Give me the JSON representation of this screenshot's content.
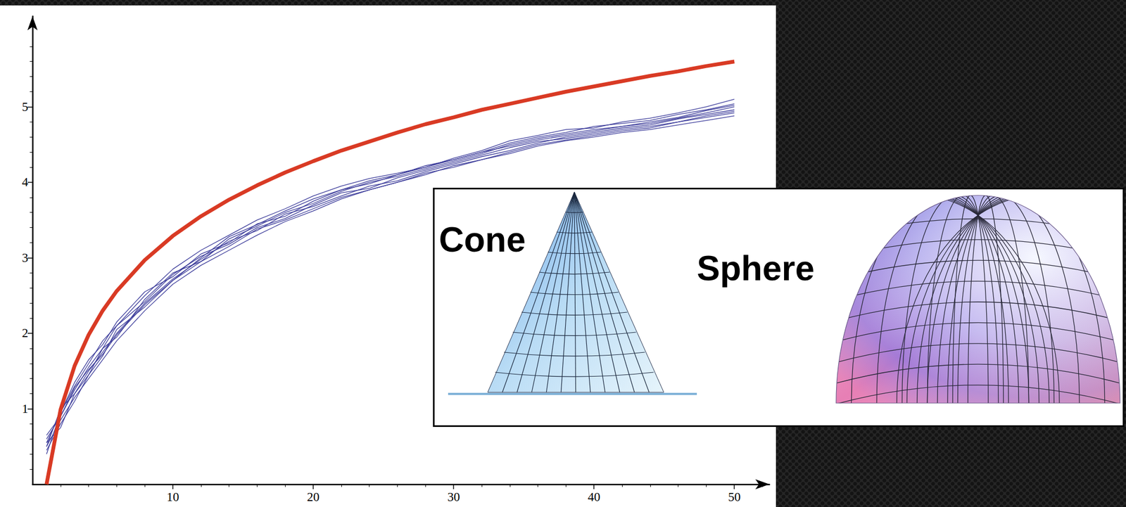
{
  "chart_data": {
    "type": "line",
    "x": [
      1,
      2,
      3,
      4,
      5,
      6,
      8,
      10,
      12,
      14,
      16,
      18,
      20,
      22,
      24,
      26,
      28,
      30,
      32,
      34,
      36,
      38,
      40,
      42,
      44,
      46,
      48,
      50
    ],
    "series": [
      {
        "color": "#3b3b9a",
        "line_style": "solid",
        "values": [
          0.55,
          0.95,
          1.3,
          1.6,
          1.9,
          2.1,
          2.5,
          2.85,
          3.1,
          3.3,
          3.5,
          3.65,
          3.82,
          3.95,
          4.05,
          4.12,
          4.2,
          4.32,
          4.42,
          4.55,
          4.62,
          4.7,
          4.72,
          4.8,
          4.85,
          4.92,
          5.0,
          5.1
        ]
      },
      {
        "color": "#3b3b9a",
        "line_style": "solid",
        "values": [
          0.45,
          0.8,
          1.1,
          1.45,
          1.7,
          2.05,
          2.35,
          2.7,
          2.95,
          3.15,
          3.38,
          3.5,
          3.65,
          3.8,
          3.9,
          4.0,
          4.1,
          4.22,
          4.3,
          4.4,
          4.5,
          4.56,
          4.62,
          4.68,
          4.72,
          4.8,
          4.86,
          4.92
        ]
      },
      {
        "color": "#3b3b9a",
        "line_style": "solid",
        "values": [
          0.6,
          0.9,
          1.25,
          1.55,
          1.8,
          1.95,
          2.45,
          2.8,
          2.95,
          3.25,
          3.42,
          3.6,
          3.72,
          3.88,
          4.0,
          4.08,
          4.18,
          4.28,
          4.38,
          4.5,
          4.58,
          4.64,
          4.7,
          4.74,
          4.8,
          4.86,
          4.95,
          5.02
        ]
      },
      {
        "color": "#3b3b9a",
        "line_style": "solid",
        "values": [
          0.5,
          0.85,
          1.15,
          1.4,
          1.65,
          1.9,
          2.3,
          2.65,
          2.9,
          3.1,
          3.3,
          3.48,
          3.62,
          3.78,
          3.9,
          4.0,
          4.12,
          4.2,
          4.3,
          4.38,
          4.48,
          4.55,
          4.6,
          4.66,
          4.7,
          4.76,
          4.82,
          4.88
        ]
      },
      {
        "color": "#3b3b9a",
        "line_style": "solid",
        "values": [
          0.4,
          0.95,
          1.35,
          1.65,
          1.85,
          2.15,
          2.55,
          2.75,
          3.05,
          3.2,
          3.45,
          3.55,
          3.75,
          3.9,
          3.98,
          4.1,
          4.2,
          4.3,
          4.4,
          4.48,
          4.56,
          4.62,
          4.68,
          4.74,
          4.78,
          4.85,
          4.92,
          5.0
        ]
      },
      {
        "color": "#3b3b9a",
        "line_style": "solid",
        "values": [
          0.55,
          0.75,
          1.2,
          1.5,
          1.75,
          2.0,
          2.4,
          2.72,
          2.98,
          3.22,
          3.36,
          3.58,
          3.68,
          3.82,
          3.95,
          4.02,
          4.14,
          4.24,
          4.34,
          4.42,
          4.52,
          4.6,
          4.66,
          4.72,
          4.76,
          4.84,
          4.9,
          4.96
        ]
      },
      {
        "color": "#3b3b9a",
        "line_style": "solid",
        "values": [
          0.5,
          1.0,
          1.2,
          1.45,
          1.8,
          2.1,
          2.42,
          2.78,
          3.02,
          3.18,
          3.4,
          3.52,
          3.7,
          3.86,
          3.92,
          4.06,
          4.16,
          4.26,
          4.36,
          4.46,
          4.54,
          4.58,
          4.64,
          4.7,
          4.74,
          4.8,
          4.88,
          4.94
        ]
      },
      {
        "color": "#3b3b9a",
        "line_style": "solid",
        "values": [
          0.65,
          0.9,
          1.28,
          1.52,
          1.72,
          1.98,
          2.38,
          2.7,
          3.0,
          3.28,
          3.44,
          3.62,
          3.78,
          3.9,
          4.02,
          4.1,
          4.22,
          4.3,
          4.4,
          4.52,
          4.6,
          4.66,
          4.74,
          4.78,
          4.82,
          4.9,
          4.96,
          5.04
        ]
      },
      {
        "color": "#d93a24",
        "line_style": "thick",
        "values": [
          0,
          0.99,
          1.57,
          1.98,
          2.3,
          2.56,
          2.97,
          3.29,
          3.55,
          3.77,
          3.96,
          4.13,
          4.28,
          4.42,
          4.54,
          4.66,
          4.77,
          4.86,
          4.96,
          5.04,
          5.12,
          5.2,
          5.27,
          5.34,
          5.41,
          5.47,
          5.54,
          5.6
        ]
      }
    ],
    "xlim": [
      0,
      52.5
    ],
    "ylim": [
      0,
      6.2
    ],
    "xticks": [
      10,
      20,
      30,
      40,
      50
    ],
    "yticks": [
      1,
      2,
      3,
      4,
      5
    ],
    "grid": false,
    "annotations": [
      "Cone",
      "Sphere"
    ]
  }
}
